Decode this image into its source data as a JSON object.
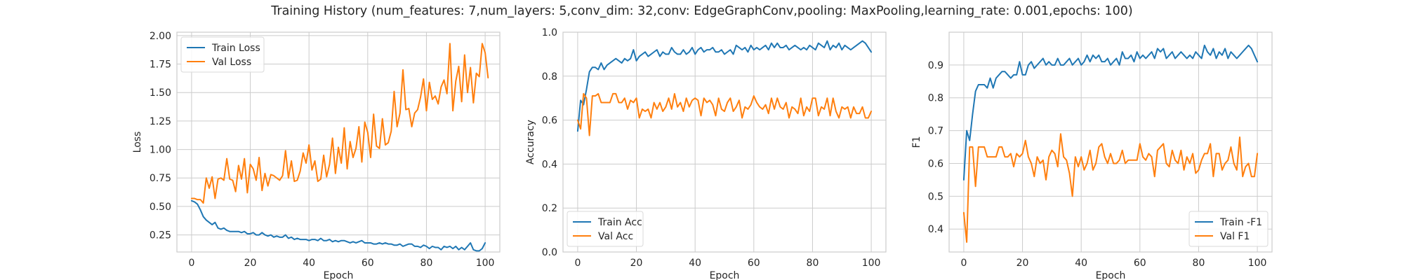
{
  "figure": {
    "suptitle": "Training History (num_features: 7,num_layers: 5,conv_dim: 32,conv: EdgeGraphConv,pooling: MaxPooling,learning_rate: 0.001,epochs: 100)"
  },
  "colors": {
    "train": "#1f77b4",
    "val": "#ff7f0e",
    "grid": "#cccccc",
    "spine": "#cccccc",
    "background": "#ffffff"
  },
  "chart_data": [
    {
      "type": "line",
      "id": "loss",
      "xlabel": "Epoch",
      "ylabel": "Loss",
      "xlim": [
        -5,
        105
      ],
      "ylim": [
        0.1,
        2.03
      ],
      "xticks": [
        0,
        20,
        40,
        60,
        80,
        100
      ],
      "yticks": [
        0.25,
        0.5,
        0.75,
        1.0,
        1.25,
        1.5,
        1.75,
        2.0
      ],
      "ytick_labels": [
        "0.25",
        "0.50",
        "0.75",
        "1.00",
        "1.25",
        "1.50",
        "1.75",
        "2.00"
      ],
      "grid": true,
      "legend_position": "upper-left",
      "series": [
        {
          "name": "Train Loss",
          "color": "#1f77b4",
          "values": [
            0.55,
            0.54,
            0.52,
            0.47,
            0.41,
            0.38,
            0.36,
            0.34,
            0.36,
            0.31,
            0.3,
            0.31,
            0.29,
            0.28,
            0.28,
            0.28,
            0.28,
            0.27,
            0.28,
            0.26,
            0.26,
            0.27,
            0.25,
            0.25,
            0.27,
            0.25,
            0.24,
            0.25,
            0.23,
            0.24,
            0.23,
            0.23,
            0.25,
            0.22,
            0.23,
            0.21,
            0.22,
            0.21,
            0.21,
            0.21,
            0.2,
            0.21,
            0.21,
            0.2,
            0.22,
            0.2,
            0.2,
            0.21,
            0.19,
            0.2,
            0.19,
            0.2,
            0.2,
            0.19,
            0.18,
            0.19,
            0.18,
            0.19,
            0.2,
            0.18,
            0.18,
            0.18,
            0.17,
            0.17,
            0.18,
            0.17,
            0.18,
            0.17,
            0.17,
            0.16,
            0.16,
            0.17,
            0.15,
            0.16,
            0.17,
            0.17,
            0.15,
            0.15,
            0.14,
            0.16,
            0.15,
            0.13,
            0.15,
            0.14,
            0.14,
            0.12,
            0.15,
            0.14,
            0.15,
            0.13,
            0.15,
            0.12,
            0.14,
            0.12,
            0.15,
            0.18,
            0.12,
            0.11,
            0.11,
            0.13,
            0.18
          ]
        },
        {
          "name": "Val Loss",
          "color": "#ff7f0e",
          "values": [
            0.57,
            0.57,
            0.56,
            0.56,
            0.53,
            0.75,
            0.66,
            0.76,
            0.57,
            0.74,
            0.75,
            0.73,
            0.92,
            0.74,
            0.73,
            0.63,
            0.86,
            0.74,
            0.92,
            0.62,
            0.87,
            0.83,
            0.73,
            0.93,
            0.64,
            0.79,
            0.68,
            0.78,
            0.77,
            0.75,
            0.73,
            0.77,
            0.99,
            0.75,
            0.9,
            0.72,
            0.73,
            0.81,
            0.97,
            0.88,
            1.04,
            0.82,
            0.9,
            0.72,
            0.74,
            0.95,
            0.76,
            0.87,
            1.1,
            0.79,
            1.02,
            0.88,
            1.19,
            0.83,
            1.07,
            0.93,
            1.01,
            1.2,
            0.89,
            1.24,
            1.15,
            0.93,
            1.31,
            1.03,
            1.01,
            1.27,
            1.04,
            1.06,
            1.16,
            1.51,
            1.2,
            1.32,
            1.7,
            1.35,
            1.36,
            1.2,
            1.32,
            1.35,
            1.46,
            1.62,
            1.34,
            1.59,
            1.44,
            1.47,
            1.4,
            1.55,
            1.61,
            1.49,
            1.93,
            1.34,
            1.6,
            1.73,
            1.42,
            1.83,
            1.5,
            1.72,
            1.41,
            1.67,
            1.64,
            1.93,
            1.85,
            1.63
          ]
        }
      ]
    },
    {
      "type": "line",
      "id": "accuracy",
      "xlabel": "Epoch",
      "ylabel": "Accuracy",
      "xlim": [
        -5,
        105
      ],
      "ylim": [
        0.0,
        1.0
      ],
      "xticks": [
        0,
        20,
        40,
        60,
        80,
        100
      ],
      "yticks": [
        0.0,
        0.2,
        0.4,
        0.6,
        0.8,
        1.0
      ],
      "ytick_labels": [
        "0.0",
        "0.2",
        "0.4",
        "0.6",
        "0.8",
        "1.0"
      ],
      "grid": true,
      "legend_position": "lower-left",
      "series": [
        {
          "name": "Train Acc",
          "color": "#1f77b4",
          "values": [
            0.55,
            0.69,
            0.67,
            0.74,
            0.82,
            0.84,
            0.84,
            0.83,
            0.86,
            0.83,
            0.85,
            0.86,
            0.87,
            0.88,
            0.87,
            0.86,
            0.88,
            0.87,
            0.88,
            0.92,
            0.87,
            0.89,
            0.9,
            0.91,
            0.89,
            0.9,
            0.91,
            0.92,
            0.89,
            0.91,
            0.9,
            0.9,
            0.93,
            0.91,
            0.9,
            0.9,
            0.92,
            0.9,
            0.91,
            0.93,
            0.9,
            0.92,
            0.93,
            0.91,
            0.92,
            0.92,
            0.93,
            0.91,
            0.91,
            0.92,
            0.9,
            0.91,
            0.92,
            0.9,
            0.94,
            0.93,
            0.92,
            0.93,
            0.91,
            0.94,
            0.92,
            0.93,
            0.92,
            0.93,
            0.94,
            0.92,
            0.95,
            0.93,
            0.95,
            0.93,
            0.93,
            0.94,
            0.92,
            0.93,
            0.94,
            0.93,
            0.92,
            0.93,
            0.92,
            0.94,
            0.93,
            0.92,
            0.95,
            0.94,
            0.93,
            0.96,
            0.92,
            0.94,
            0.93,
            0.95,
            0.92,
            0.94,
            0.93,
            0.92,
            0.93,
            0.94,
            0.95,
            0.96,
            0.95,
            0.93,
            0.91
          ]
        },
        {
          "name": "Val Acc",
          "color": "#ff7f0e",
          "values": [
            0.6,
            0.56,
            0.72,
            0.7,
            0.53,
            0.71,
            0.71,
            0.72,
            0.68,
            0.68,
            0.68,
            0.68,
            0.72,
            0.72,
            0.68,
            0.68,
            0.7,
            0.65,
            0.69,
            0.68,
            0.7,
            0.61,
            0.65,
            0.64,
            0.65,
            0.61,
            0.68,
            0.65,
            0.68,
            0.64,
            0.66,
            0.7,
            0.65,
            0.72,
            0.66,
            0.68,
            0.64,
            0.7,
            0.66,
            0.69,
            0.7,
            0.69,
            0.62,
            0.7,
            0.68,
            0.69,
            0.67,
            0.62,
            0.7,
            0.65,
            0.64,
            0.68,
            0.7,
            0.64,
            0.66,
            0.69,
            0.61,
            0.66,
            0.65,
            0.67,
            0.71,
            0.68,
            0.66,
            0.65,
            0.67,
            0.63,
            0.7,
            0.65,
            0.7,
            0.66,
            0.65,
            0.68,
            0.61,
            0.66,
            0.65,
            0.63,
            0.7,
            0.62,
            0.66,
            0.64,
            0.7,
            0.7,
            0.62,
            0.66,
            0.65,
            0.7,
            0.62,
            0.7,
            0.64,
            0.61,
            0.66,
            0.65,
            0.66,
            0.61,
            0.66,
            0.63,
            0.63,
            0.66,
            0.61,
            0.61,
            0.64
          ]
        }
      ]
    },
    {
      "type": "line",
      "id": "f1",
      "xlabel": "Epoch",
      "ylabel": "F1",
      "xlim": [
        -5,
        105
      ],
      "ylim": [
        0.33,
        1.0
      ],
      "xticks": [
        0,
        20,
        40,
        60,
        80,
        100
      ],
      "yticks": [
        0.4,
        0.5,
        0.6,
        0.7,
        0.8,
        0.9
      ],
      "ytick_labels": [
        "0.4",
        "0.5",
        "0.6",
        "0.7",
        "0.8",
        "0.9"
      ],
      "grid": true,
      "legend_position": "lower-right",
      "series": [
        {
          "name": "Train -F1",
          "color": "#1f77b4",
          "values": [
            0.55,
            0.7,
            0.67,
            0.75,
            0.82,
            0.84,
            0.84,
            0.84,
            0.83,
            0.86,
            0.83,
            0.86,
            0.87,
            0.88,
            0.88,
            0.87,
            0.86,
            0.87,
            0.87,
            0.91,
            0.87,
            0.87,
            0.9,
            0.91,
            0.89,
            0.9,
            0.91,
            0.92,
            0.9,
            0.91,
            0.9,
            0.9,
            0.92,
            0.9,
            0.9,
            0.91,
            0.92,
            0.9,
            0.91,
            0.92,
            0.9,
            0.91,
            0.93,
            0.91,
            0.93,
            0.92,
            0.93,
            0.91,
            0.91,
            0.92,
            0.9,
            0.91,
            0.92,
            0.9,
            0.94,
            0.92,
            0.92,
            0.93,
            0.91,
            0.94,
            0.92,
            0.93,
            0.92,
            0.93,
            0.94,
            0.92,
            0.95,
            0.94,
            0.95,
            0.92,
            0.93,
            0.94,
            0.92,
            0.93,
            0.94,
            0.93,
            0.92,
            0.93,
            0.92,
            0.94,
            0.93,
            0.92,
            0.96,
            0.94,
            0.93,
            0.95,
            0.92,
            0.94,
            0.93,
            0.95,
            0.92,
            0.94,
            0.93,
            0.92,
            0.93,
            0.94,
            0.95,
            0.96,
            0.95,
            0.93,
            0.91
          ]
        },
        {
          "name": "Val F1",
          "color": "#ff7f0e",
          "values": [
            0.45,
            0.36,
            0.65,
            0.65,
            0.53,
            0.65,
            0.65,
            0.65,
            0.62,
            0.62,
            0.62,
            0.62,
            0.65,
            0.65,
            0.62,
            0.62,
            0.63,
            0.59,
            0.63,
            0.62,
            0.63,
            0.67,
            0.62,
            0.6,
            0.56,
            0.62,
            0.6,
            0.61,
            0.55,
            0.62,
            0.64,
            0.63,
            0.59,
            0.69,
            0.62,
            0.61,
            0.57,
            0.5,
            0.62,
            0.59,
            0.62,
            0.58,
            0.6,
            0.64,
            0.58,
            0.6,
            0.65,
            0.66,
            0.62,
            0.6,
            0.63,
            0.6,
            0.6,
            0.61,
            0.64,
            0.6,
            0.61,
            0.61,
            0.61,
            0.61,
            0.66,
            0.62,
            0.61,
            0.63,
            0.62,
            0.56,
            0.64,
            0.65,
            0.66,
            0.6,
            0.59,
            0.64,
            0.61,
            0.6,
            0.64,
            0.58,
            0.62,
            0.6,
            0.63,
            0.57,
            0.58,
            0.61,
            0.63,
            0.63,
            0.66,
            0.56,
            0.63,
            0.63,
            0.58,
            0.6,
            0.61,
            0.65,
            0.6,
            0.58,
            0.68,
            0.56,
            0.59,
            0.6,
            0.56,
            0.56,
            0.63
          ]
        }
      ]
    }
  ]
}
